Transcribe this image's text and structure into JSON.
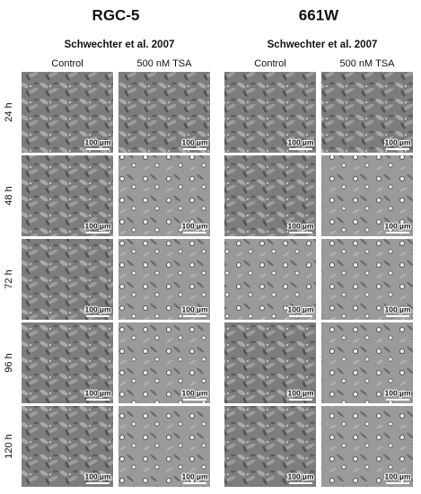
{
  "groups": [
    {
      "title": "RGC-5",
      "subtitle": "Schwechter et al. 2007",
      "columns": [
        "Control",
        "500 nM TSA"
      ]
    },
    {
      "title": "661W",
      "subtitle": "Schwechter et al. 2007",
      "columns": [
        "Control",
        "500 nM TSA"
      ]
    }
  ],
  "rows": [
    "24 h",
    "48 h",
    "72 h",
    "96 h",
    "120 h"
  ],
  "scale_bar": "100 µm"
}
